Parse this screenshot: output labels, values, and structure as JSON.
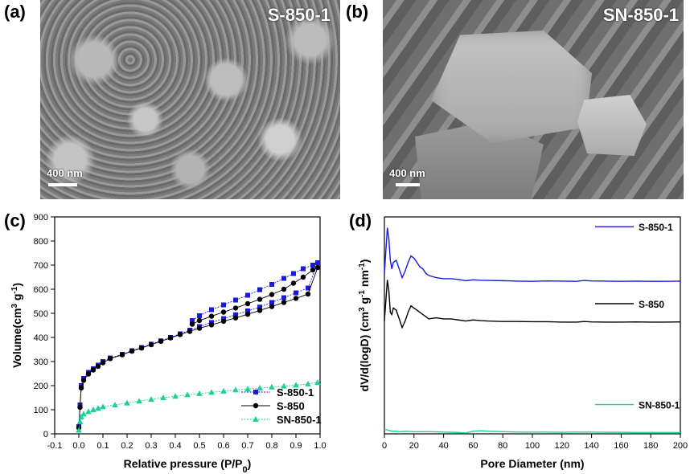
{
  "panels": {
    "a": {
      "letter": "(a)",
      "sample": "S-850-1",
      "scale": "400 nm"
    },
    "b": {
      "letter": "(b)",
      "sample": "SN-850-1",
      "scale": "400 nm"
    },
    "c": {
      "letter": "(c)"
    },
    "d": {
      "letter": "(d)"
    }
  },
  "colors": {
    "S-850-1": "#1a1adb",
    "S-850": "#000000",
    "SN-850-1": "#1ecf9a"
  },
  "chart_data": [
    {
      "id": "c",
      "type": "scatter",
      "xlabel": "Relative pressure (P/P0)",
      "ylabel": "Volume(cm3 g-1)",
      "xlim": [
        -0.1,
        1.0
      ],
      "ylim": [
        0,
        900
      ],
      "xticks": [
        "-0.1",
        "0.0",
        "0.1",
        "0.2",
        "0.3",
        "0.4",
        "0.5",
        "0.6",
        "0.7",
        "0.8",
        "0.9",
        "1.0"
      ],
      "yticks": [
        "0",
        "100",
        "200",
        "300",
        "400",
        "500",
        "600",
        "700",
        "800",
        "900"
      ],
      "legend_position": "bottom-right",
      "series": [
        {
          "name": "S-850-1",
          "marker": "square",
          "x": [
            0.0,
            0.005,
            0.01,
            0.02,
            0.04,
            0.06,
            0.08,
            0.1,
            0.13,
            0.18,
            0.22,
            0.26,
            0.3,
            0.34,
            0.38,
            0.42,
            0.46,
            0.5,
            0.55,
            0.6,
            0.65,
            0.7,
            0.75,
            0.8,
            0.85,
            0.9,
            0.95,
            0.99,
            0.97,
            0.93,
            0.89,
            0.85,
            0.8,
            0.75,
            0.7,
            0.65,
            0.6,
            0.55,
            0.5,
            0.47
          ],
          "y": [
            30,
            120,
            200,
            230,
            255,
            270,
            285,
            300,
            315,
            330,
            345,
            358,
            372,
            386,
            400,
            415,
            430,
            445,
            462,
            478,
            494,
            510,
            526,
            545,
            565,
            585,
            605,
            710,
            700,
            685,
            665,
            645,
            620,
            598,
            575,
            555,
            535,
            515,
            490,
            470
          ]
        },
        {
          "name": "S-850",
          "marker": "circle",
          "x": [
            0.0,
            0.005,
            0.01,
            0.02,
            0.04,
            0.06,
            0.08,
            0.1,
            0.13,
            0.18,
            0.22,
            0.26,
            0.3,
            0.34,
            0.38,
            0.42,
            0.46,
            0.5,
            0.55,
            0.6,
            0.65,
            0.7,
            0.75,
            0.8,
            0.85,
            0.9,
            0.95,
            0.99,
            0.97,
            0.93,
            0.89,
            0.85,
            0.8,
            0.75,
            0.7,
            0.65,
            0.6,
            0.55,
            0.5,
            0.47
          ],
          "y": [
            25,
            110,
            190,
            222,
            248,
            265,
            280,
            295,
            312,
            328,
            343,
            356,
            370,
            384,
            398,
            412,
            425,
            438,
            452,
            467,
            481,
            496,
            512,
            528,
            545,
            562,
            580,
            690,
            680,
            650,
            625,
            600,
            578,
            558,
            540,
            522,
            505,
            488,
            470,
            455
          ]
        },
        {
          "name": "SN-850-1",
          "marker": "triangle",
          "x": [
            0.0,
            0.005,
            0.01,
            0.02,
            0.04,
            0.06,
            0.08,
            0.1,
            0.15,
            0.2,
            0.25,
            0.3,
            0.35,
            0.4,
            0.45,
            0.5,
            0.55,
            0.6,
            0.65,
            0.7,
            0.75,
            0.8,
            0.85,
            0.9,
            0.95,
            0.99
          ],
          "y": [
            15,
            50,
            70,
            82,
            92,
            100,
            106,
            112,
            120,
            128,
            136,
            143,
            150,
            156,
            162,
            167,
            172,
            177,
            182,
            186,
            190,
            194,
            198,
            202,
            207,
            213
          ]
        }
      ]
    },
    {
      "id": "d",
      "type": "line",
      "xlabel": "Pore Diameter (nm)",
      "ylabel": "dV/d(logD) (cm3 g-1 nm-1)",
      "xlim": [
        0,
        200
      ],
      "ylim": [
        0,
        1
      ],
      "xticks": [
        "0",
        "20",
        "40",
        "60",
        "80",
        "100",
        "120",
        "140",
        "160",
        "180",
        "200"
      ],
      "series": [
        {
          "name": "S-850-1",
          "x": [
            0,
            2,
            3,
            4,
            5,
            6,
            8,
            10,
            12,
            14,
            16,
            18,
            20,
            22,
            24,
            26,
            28,
            30,
            35,
            40,
            45,
            50,
            55,
            60,
            65,
            70,
            80,
            90,
            100,
            110,
            120,
            130,
            135,
            140,
            150,
            160,
            170,
            180,
            190,
            200
          ],
          "y": [
            0.74,
            0.95,
            0.9,
            0.8,
            0.76,
            0.79,
            0.8,
            0.76,
            0.72,
            0.75,
            0.79,
            0.82,
            0.81,
            0.79,
            0.77,
            0.76,
            0.74,
            0.73,
            0.72,
            0.715,
            0.715,
            0.712,
            0.706,
            0.71,
            0.708,
            0.707,
            0.706,
            0.704,
            0.703,
            0.705,
            0.704,
            0.703,
            0.707,
            0.705,
            0.704,
            0.703,
            0.704,
            0.703,
            0.703,
            0.704
          ]
        },
        {
          "name": "S-850",
          "x": [
            0,
            2,
            3,
            4,
            5,
            6,
            8,
            10,
            12,
            14,
            16,
            18,
            20,
            22,
            24,
            26,
            28,
            30,
            35,
            40,
            45,
            50,
            55,
            60,
            65,
            70,
            80,
            90,
            100,
            110,
            120,
            130,
            135,
            140,
            150,
            160,
            170,
            180,
            190,
            200
          ],
          "y": [
            0.52,
            0.71,
            0.66,
            0.56,
            0.55,
            0.58,
            0.57,
            0.53,
            0.49,
            0.52,
            0.56,
            0.59,
            0.58,
            0.57,
            0.56,
            0.55,
            0.54,
            0.53,
            0.535,
            0.53,
            0.53,
            0.525,
            0.52,
            0.525,
            0.522,
            0.52,
            0.518,
            0.518,
            0.517,
            0.517,
            0.515,
            0.515,
            0.518,
            0.516,
            0.515,
            0.515,
            0.516,
            0.515,
            0.515,
            0.516
          ]
        },
        {
          "name": "SN-850-1",
          "x": [
            0,
            2,
            5,
            8,
            10,
            15,
            20,
            30,
            40,
            50,
            55,
            60,
            65,
            70,
            80,
            90,
            100,
            110,
            120,
            130,
            140,
            150,
            160,
            170,
            180,
            190,
            200
          ],
          "y": [
            0.022,
            0.018,
            0.012,
            0.012,
            0.01,
            0.012,
            0.01,
            0.01,
            0.008,
            0.006,
            0.004,
            0.012,
            0.014,
            0.012,
            0.01,
            0.008,
            0.008,
            0.008,
            0.007,
            0.008,
            0.008,
            0.007,
            0.007,
            0.006,
            0.006,
            0.006,
            0.006
          ]
        }
      ]
    }
  ]
}
